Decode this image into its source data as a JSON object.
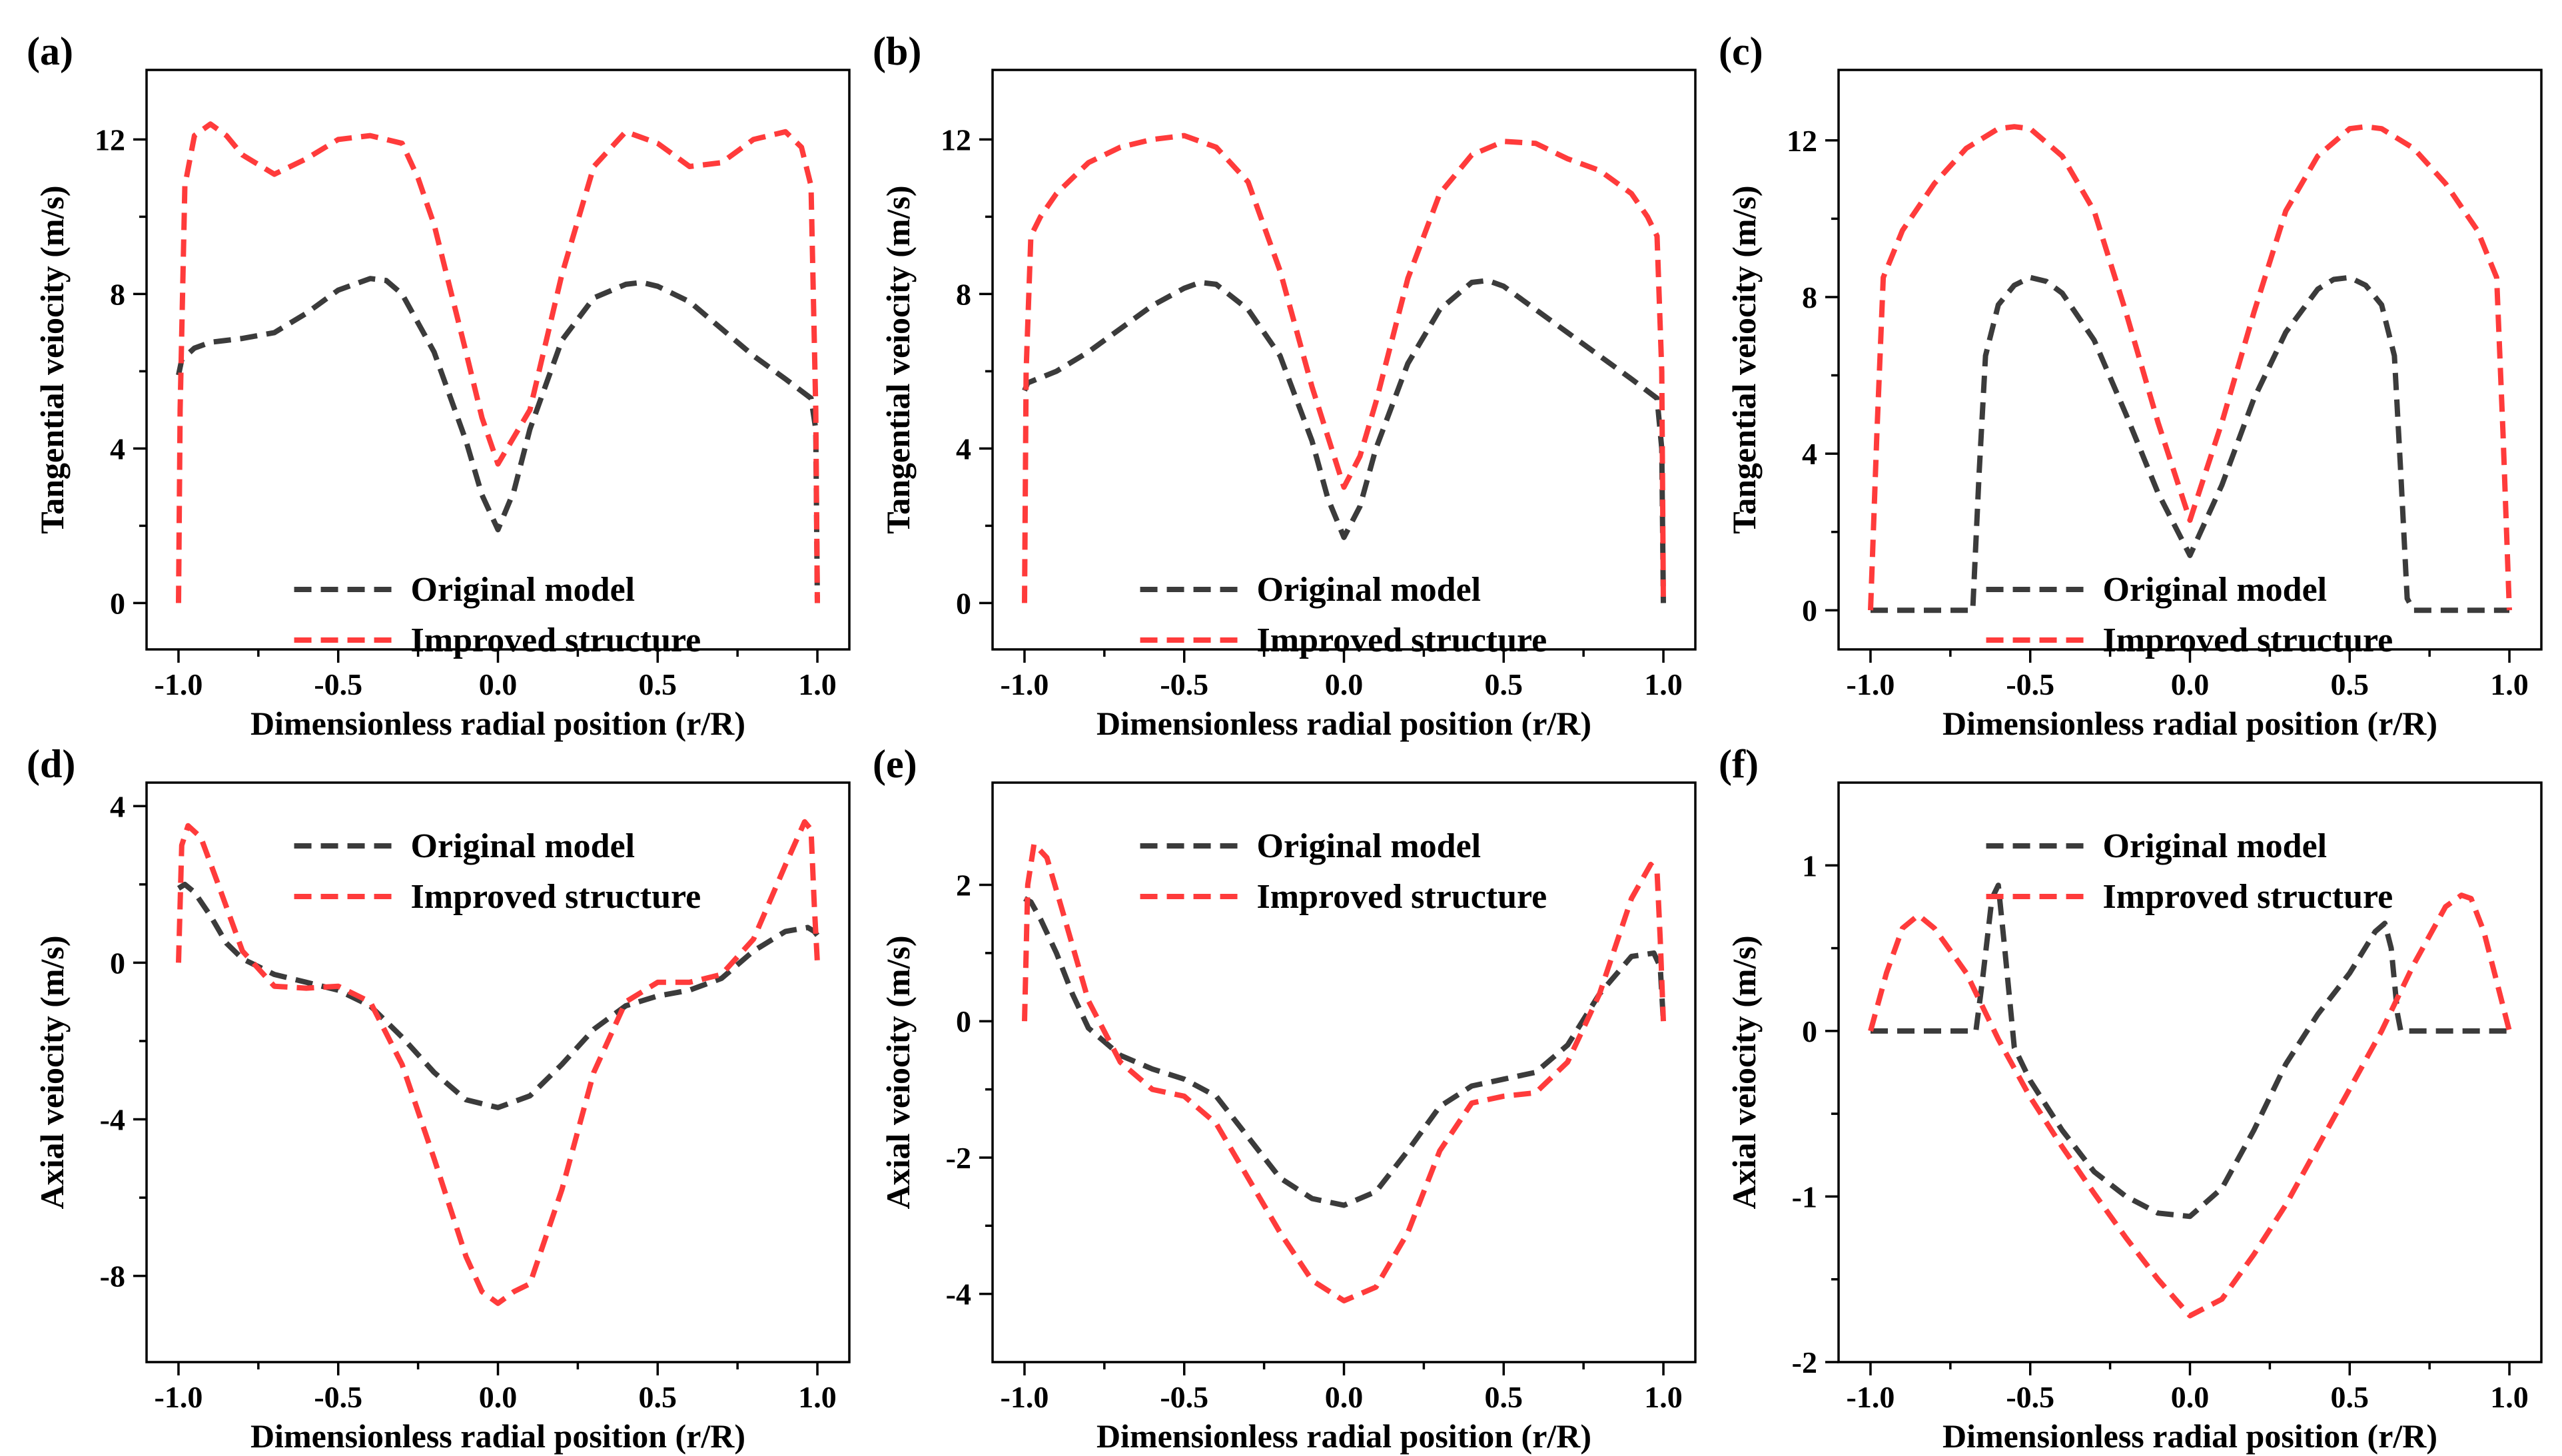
{
  "colors": {
    "original": "#3b3b3b",
    "improved": "#ff3b3b"
  },
  "chart_data": [
    {
      "panel": "(a)",
      "type": "line",
      "xlabel": "Dimensionless radial position (r/R)",
      "ylabel": "Tangential veiocity (m/s)",
      "xlim": [
        -1.1,
        1.1
      ],
      "ylim": [
        -1.2,
        13.8
      ],
      "xticks": [
        -1.0,
        -0.5,
        0.0,
        0.5,
        1.0
      ],
      "xtick_labels": [
        "-1.0",
        "-0.5",
        "0.0",
        "0.5",
        "1.0"
      ],
      "yticks": [
        0,
        4,
        8,
        12
      ],
      "ytick_labels": [
        "0",
        "4",
        "8",
        "12"
      ],
      "legend": "bottom-center",
      "series": [
        {
          "name": "Original model",
          "color_key": "original",
          "x": [
            -1.0,
            -0.99,
            -0.95,
            -0.9,
            -0.85,
            -0.8,
            -0.7,
            -0.6,
            -0.5,
            -0.4,
            -0.35,
            -0.3,
            -0.2,
            -0.1,
            -0.05,
            0.0,
            0.05,
            0.1,
            0.2,
            0.3,
            0.4,
            0.45,
            0.5,
            0.6,
            0.7,
            0.8,
            0.9,
            0.98,
            0.995,
            1.0
          ],
          "y": [
            5.9,
            6.3,
            6.6,
            6.75,
            6.8,
            6.85,
            7.0,
            7.5,
            8.1,
            8.4,
            8.35,
            8.0,
            6.5,
            4.2,
            2.8,
            1.9,
            2.9,
            4.5,
            6.8,
            7.9,
            8.25,
            8.3,
            8.2,
            7.8,
            7.1,
            6.4,
            5.8,
            5.3,
            4.5,
            0.0
          ]
        },
        {
          "name": "Improved structure",
          "color_key": "improved",
          "x": [
            -1.0,
            -0.995,
            -0.98,
            -0.95,
            -0.9,
            -0.85,
            -0.8,
            -0.7,
            -0.6,
            -0.5,
            -0.4,
            -0.3,
            -0.25,
            -0.2,
            -0.1,
            -0.05,
            0.0,
            0.05,
            0.1,
            0.2,
            0.3,
            0.4,
            0.5,
            0.6,
            0.7,
            0.8,
            0.9,
            0.95,
            0.98,
            0.995,
            1.0
          ],
          "y": [
            0.0,
            5.0,
            10.8,
            12.1,
            12.4,
            12.1,
            11.6,
            11.1,
            11.5,
            12.0,
            12.1,
            11.9,
            11.0,
            9.8,
            6.5,
            4.8,
            3.6,
            4.3,
            5.0,
            8.5,
            11.3,
            12.2,
            11.9,
            11.3,
            11.4,
            12.0,
            12.2,
            11.8,
            10.8,
            5.0,
            0.0
          ]
        }
      ]
    },
    {
      "panel": "(b)",
      "type": "line",
      "xlabel": "Dimensionless radial position (r/R)",
      "ylabel": "Tangential veiocity (m/s)",
      "xlim": [
        -1.1,
        1.1
      ],
      "ylim": [
        -1.2,
        13.8
      ],
      "xticks": [
        -1.0,
        -0.5,
        0.0,
        0.5,
        1.0
      ],
      "xtick_labels": [
        "-1.0",
        "-0.5",
        "0.0",
        "0.5",
        "1.0"
      ],
      "yticks": [
        0,
        4,
        8,
        12
      ],
      "ytick_labels": [
        "0",
        "4",
        "8",
        "12"
      ],
      "legend": "bottom-center",
      "series": [
        {
          "name": "Original model",
          "color_key": "original",
          "x": [
            -1.0,
            -0.99,
            -0.9,
            -0.8,
            -0.7,
            -0.6,
            -0.5,
            -0.45,
            -0.4,
            -0.3,
            -0.2,
            -0.1,
            -0.05,
            0.0,
            0.05,
            0.1,
            0.2,
            0.3,
            0.4,
            0.45,
            0.5,
            0.6,
            0.7,
            0.8,
            0.9,
            0.98,
            0.995,
            1.0
          ],
          "y": [
            5.5,
            5.7,
            6.0,
            6.5,
            7.1,
            7.7,
            8.15,
            8.3,
            8.25,
            7.6,
            6.4,
            4.2,
            2.7,
            1.7,
            2.5,
            4.0,
            6.2,
            7.6,
            8.3,
            8.35,
            8.2,
            7.6,
            7.0,
            6.4,
            5.8,
            5.3,
            4.0,
            0.0
          ]
        },
        {
          "name": "Improved structure",
          "color_key": "improved",
          "x": [
            -1.0,
            -0.995,
            -0.98,
            -0.95,
            -0.9,
            -0.8,
            -0.7,
            -0.6,
            -0.5,
            -0.4,
            -0.3,
            -0.2,
            -0.1,
            0.0,
            0.05,
            0.1,
            0.2,
            0.3,
            0.4,
            0.5,
            0.6,
            0.7,
            0.8,
            0.9,
            0.95,
            0.98,
            0.995,
            1.0
          ],
          "y": [
            0.0,
            6.0,
            9.5,
            10.0,
            10.6,
            11.4,
            11.8,
            12.0,
            12.1,
            11.8,
            10.9,
            8.6,
            5.6,
            3.0,
            3.8,
            5.2,
            8.4,
            10.6,
            11.6,
            11.95,
            11.9,
            11.5,
            11.2,
            10.6,
            10.0,
            9.5,
            6.0,
            0.0
          ]
        }
      ]
    },
    {
      "panel": "(c)",
      "type": "line",
      "xlabel": "Dimensionless radial position (r/R)",
      "ylabel": "Tangential veiocity (m/s)",
      "xlim": [
        -1.1,
        1.1
      ],
      "ylim": [
        -1.0,
        13.8
      ],
      "xticks": [
        -1.0,
        -0.5,
        0.0,
        0.5,
        1.0
      ],
      "xtick_labels": [
        "-1.0",
        "-0.5",
        "0.0",
        "0.5",
        "1.0"
      ],
      "yticks": [
        0,
        4,
        8,
        12
      ],
      "ytick_labels": [
        "0",
        "4",
        "8",
        "12"
      ],
      "legend": "bottom-center",
      "series": [
        {
          "name": "Original model",
          "color_key": "original",
          "x": [
            -1.0,
            -0.68,
            -0.66,
            -0.64,
            -0.6,
            -0.55,
            -0.5,
            -0.45,
            -0.4,
            -0.3,
            -0.2,
            -0.1,
            0.0,
            0.1,
            0.2,
            0.3,
            0.4,
            0.45,
            0.5,
            0.55,
            0.6,
            0.64,
            0.66,
            0.68,
            0.7,
            1.0
          ],
          "y": [
            0.0,
            0.0,
            3.5,
            6.5,
            7.8,
            8.3,
            8.5,
            8.4,
            8.1,
            6.9,
            5.0,
            3.0,
            1.4,
            3.2,
            5.4,
            7.1,
            8.2,
            8.45,
            8.5,
            8.3,
            7.8,
            6.5,
            3.5,
            0.3,
            0.0,
            0.0
          ]
        },
        {
          "name": "Improved structure",
          "color_key": "improved",
          "x": [
            -1.0,
            -0.98,
            -0.96,
            -0.9,
            -0.8,
            -0.7,
            -0.6,
            -0.55,
            -0.5,
            -0.4,
            -0.3,
            -0.2,
            -0.1,
            0.0,
            0.1,
            0.2,
            0.3,
            0.4,
            0.5,
            0.55,
            0.6,
            0.7,
            0.8,
            0.9,
            0.96,
            0.98,
            1.0
          ],
          "y": [
            0.0,
            4.5,
            8.5,
            9.7,
            10.9,
            11.8,
            12.3,
            12.35,
            12.3,
            11.6,
            10.2,
            7.6,
            4.8,
            2.3,
            4.8,
            7.6,
            10.2,
            11.6,
            12.3,
            12.35,
            12.3,
            11.8,
            10.9,
            9.7,
            8.5,
            4.5,
            0.0
          ]
        }
      ]
    },
    {
      "panel": "(d)",
      "type": "line",
      "xlabel": "Dimensionless radial position (r/R)",
      "ylabel": "Axial veiocity (m/s)",
      "xlim": [
        -1.1,
        1.1
      ],
      "ylim": [
        -10.2,
        4.6
      ],
      "xticks": [
        -1.0,
        -0.5,
        0.0,
        0.5,
        1.0
      ],
      "xtick_labels": [
        "-1.0",
        "-0.5",
        "0.0",
        "0.5",
        "1.0"
      ],
      "yticks": [
        -8,
        -4,
        0,
        4
      ],
      "ytick_labels": [
        "-8",
        "-4",
        "0",
        "4"
      ],
      "legend": "top-center",
      "series": [
        {
          "name": "Original model",
          "color_key": "original",
          "x": [
            -1.0,
            -0.98,
            -0.95,
            -0.9,
            -0.85,
            -0.8,
            -0.7,
            -0.6,
            -0.5,
            -0.4,
            -0.3,
            -0.2,
            -0.1,
            0.0,
            0.1,
            0.2,
            0.3,
            0.4,
            0.5,
            0.6,
            0.7,
            0.8,
            0.9,
            0.97,
            0.99,
            1.0
          ],
          "y": [
            1.9,
            2.0,
            1.8,
            1.2,
            0.5,
            0.1,
            -0.3,
            -0.5,
            -0.7,
            -1.1,
            -1.9,
            -2.8,
            -3.5,
            -3.7,
            -3.4,
            -2.6,
            -1.7,
            -1.1,
            -0.85,
            -0.7,
            -0.4,
            0.3,
            0.8,
            0.9,
            0.8,
            0.7
          ]
        },
        {
          "name": "Improved structure",
          "color_key": "improved",
          "x": [
            -1.0,
            -0.99,
            -0.97,
            -0.93,
            -0.88,
            -0.8,
            -0.7,
            -0.6,
            -0.5,
            -0.4,
            -0.3,
            -0.2,
            -0.1,
            -0.05,
            0.0,
            0.05,
            0.1,
            0.2,
            0.3,
            0.4,
            0.5,
            0.6,
            0.7,
            0.8,
            0.9,
            0.96,
            0.98,
            0.99,
            1.0
          ],
          "y": [
            0.0,
            3.0,
            3.5,
            3.2,
            2.1,
            0.3,
            -0.6,
            -0.65,
            -0.6,
            -1.0,
            -2.6,
            -5.0,
            -7.5,
            -8.4,
            -8.7,
            -8.4,
            -8.2,
            -5.8,
            -2.8,
            -1.0,
            -0.5,
            -0.5,
            -0.3,
            0.6,
            2.5,
            3.6,
            3.4,
            1.5,
            0.0
          ]
        }
      ]
    },
    {
      "panel": "(e)",
      "type": "line",
      "xlabel": "Dimensionless radial position (r/R)",
      "ylabel": "Axial veiocity (m/s)",
      "xlim": [
        -1.1,
        1.1
      ],
      "ylim": [
        -5.0,
        3.5
      ],
      "xticks": [
        -1.0,
        -0.5,
        0.0,
        0.5,
        1.0
      ],
      "xtick_labels": [
        "-1.0",
        "-0.5",
        "0.0",
        "0.5",
        "1.0"
      ],
      "yticks": [
        -4,
        -2,
        0,
        2
      ],
      "ytick_labels": [
        "-4",
        "-2",
        "0",
        "2"
      ],
      "legend": "top-center",
      "series": [
        {
          "name": "Original model",
          "color_key": "original",
          "x": [
            -1.0,
            -0.98,
            -0.95,
            -0.9,
            -0.85,
            -0.8,
            -0.7,
            -0.6,
            -0.5,
            -0.4,
            -0.3,
            -0.2,
            -0.1,
            0.0,
            0.1,
            0.2,
            0.3,
            0.4,
            0.5,
            0.6,
            0.7,
            0.8,
            0.9,
            0.97,
            0.99,
            1.0
          ],
          "y": [
            1.8,
            1.75,
            1.5,
            1.0,
            0.4,
            -0.1,
            -0.5,
            -0.7,
            -0.85,
            -1.1,
            -1.7,
            -2.3,
            -2.6,
            -2.7,
            -2.5,
            -1.9,
            -1.25,
            -0.95,
            -0.85,
            -0.75,
            -0.35,
            0.4,
            0.95,
            1.0,
            0.8,
            0.0
          ]
        },
        {
          "name": "Improved structure",
          "color_key": "improved",
          "x": [
            -1.0,
            -0.99,
            -0.97,
            -0.93,
            -0.88,
            -0.8,
            -0.7,
            -0.6,
            -0.5,
            -0.4,
            -0.3,
            -0.2,
            -0.1,
            0.0,
            0.1,
            0.2,
            0.3,
            0.4,
            0.5,
            0.6,
            0.7,
            0.8,
            0.9,
            0.96,
            0.98,
            0.99,
            1.0
          ],
          "y": [
            0.0,
            2.0,
            2.6,
            2.4,
            1.6,
            0.3,
            -0.6,
            -1.0,
            -1.1,
            -1.5,
            -2.3,
            -3.1,
            -3.8,
            -4.1,
            -3.9,
            -3.1,
            -1.9,
            -1.2,
            -1.1,
            -1.05,
            -0.6,
            0.4,
            1.8,
            2.3,
            2.2,
            1.2,
            0.0
          ]
        }
      ]
    },
    {
      "panel": "(f)",
      "type": "line",
      "xlabel": "Dimensionless radial position (r/R)",
      "ylabel": "Axial veiocity (m/s)",
      "xlim": [
        -1.1,
        1.1
      ],
      "ylim": [
        -2.0,
        1.5
      ],
      "xticks": [
        -1.0,
        -0.5,
        0.0,
        0.5,
        1.0
      ],
      "xtick_labels": [
        "-1.0",
        "-0.5",
        "0.0",
        "0.5",
        "1.0"
      ],
      "yticks": [
        -2,
        -1,
        0,
        1
      ],
      "ytick_labels": [
        "-2",
        "-1",
        "0",
        "1"
      ],
      "legend": "top-center",
      "series": [
        {
          "name": "Original model",
          "color_key": "original",
          "x": [
            -1.0,
            -0.67,
            -0.65,
            -0.62,
            -0.6,
            -0.58,
            -0.55,
            -0.5,
            -0.4,
            -0.3,
            -0.2,
            -0.1,
            0.0,
            0.1,
            0.2,
            0.3,
            0.4,
            0.5,
            0.58,
            0.61,
            0.63,
            0.65,
            0.66,
            1.0
          ],
          "y": [
            0.0,
            0.0,
            0.3,
            0.8,
            0.88,
            0.5,
            -0.1,
            -0.3,
            -0.6,
            -0.85,
            -1.0,
            -1.1,
            -1.12,
            -0.95,
            -0.6,
            -0.2,
            0.1,
            0.35,
            0.6,
            0.65,
            0.5,
            0.1,
            0.0,
            0.0
          ]
        },
        {
          "name": "Improved structure",
          "color_key": "improved",
          "x": [
            -1.0,
            -0.95,
            -0.9,
            -0.85,
            -0.8,
            -0.7,
            -0.6,
            -0.5,
            -0.4,
            -0.3,
            -0.2,
            -0.1,
            0.0,
            0.1,
            0.2,
            0.3,
            0.4,
            0.5,
            0.6,
            0.7,
            0.8,
            0.85,
            0.88,
            0.92,
            0.96,
            1.0
          ],
          "y": [
            0.0,
            0.35,
            0.62,
            0.7,
            0.62,
            0.35,
            -0.05,
            -0.4,
            -0.7,
            -0.98,
            -1.25,
            -1.5,
            -1.72,
            -1.62,
            -1.35,
            -1.05,
            -0.7,
            -0.35,
            0.0,
            0.4,
            0.75,
            0.82,
            0.8,
            0.6,
            0.3,
            0.0
          ]
        }
      ]
    }
  ]
}
